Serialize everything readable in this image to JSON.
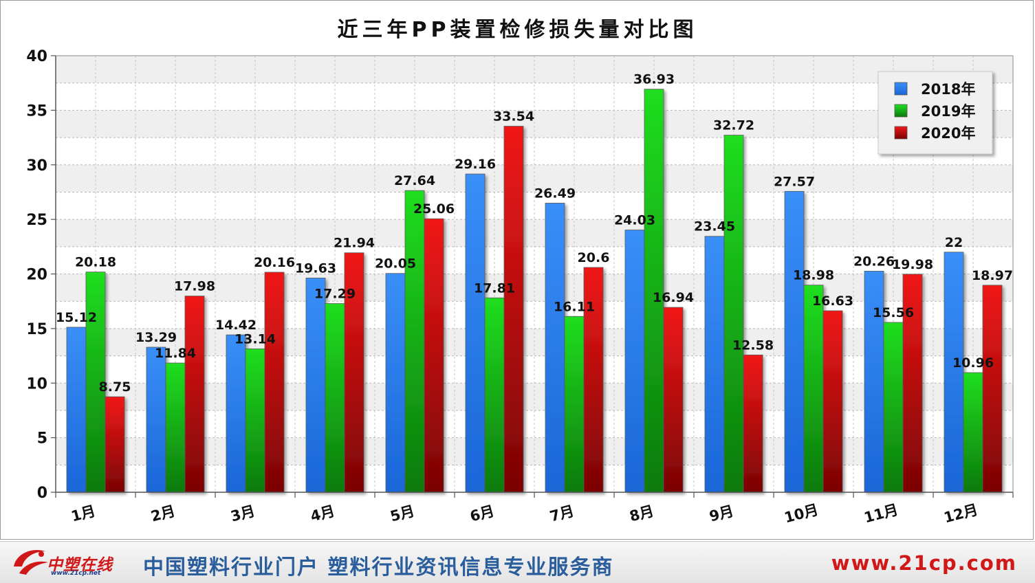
{
  "chart_data": {
    "type": "bar",
    "title": "近三年PP装置检修损失量对比图",
    "categories": [
      "1月",
      "2月",
      "3月",
      "4月",
      "5月",
      "6月",
      "7月",
      "8月",
      "9月",
      "10月",
      "11月",
      "12月"
    ],
    "series": [
      {
        "name": "2018年",
        "color": "#2f86f2",
        "values": [
          15.12,
          13.29,
          14.42,
          19.63,
          20.05,
          29.16,
          26.49,
          24.03,
          23.45,
          27.57,
          20.26,
          22
        ]
      },
      {
        "name": "2019年",
        "color": "#1ccc1c",
        "values": [
          20.18,
          11.84,
          13.14,
          17.29,
          27.64,
          17.81,
          16.11,
          36.93,
          32.72,
          18.98,
          15.56,
          10.96
        ]
      },
      {
        "name": "2020年",
        "color": "#e81414",
        "values": [
          8.75,
          17.98,
          20.16,
          21.94,
          25.06,
          33.54,
          20.6,
          16.94,
          12.58,
          16.63,
          19.98,
          18.97
        ]
      }
    ],
    "ylim": [
      0,
      40
    ],
    "yticks": [
      0,
      5,
      10,
      15,
      20,
      25,
      30,
      35,
      40
    ],
    "grid": true,
    "legend_position": "top-right"
  },
  "footer": {
    "logo_text": "中塑在线",
    "logo_sub": "www.21cp.net",
    "slogan": "中国塑料行业门户 塑料行业资讯信息专业服务商",
    "url": "www.21cp.com"
  }
}
